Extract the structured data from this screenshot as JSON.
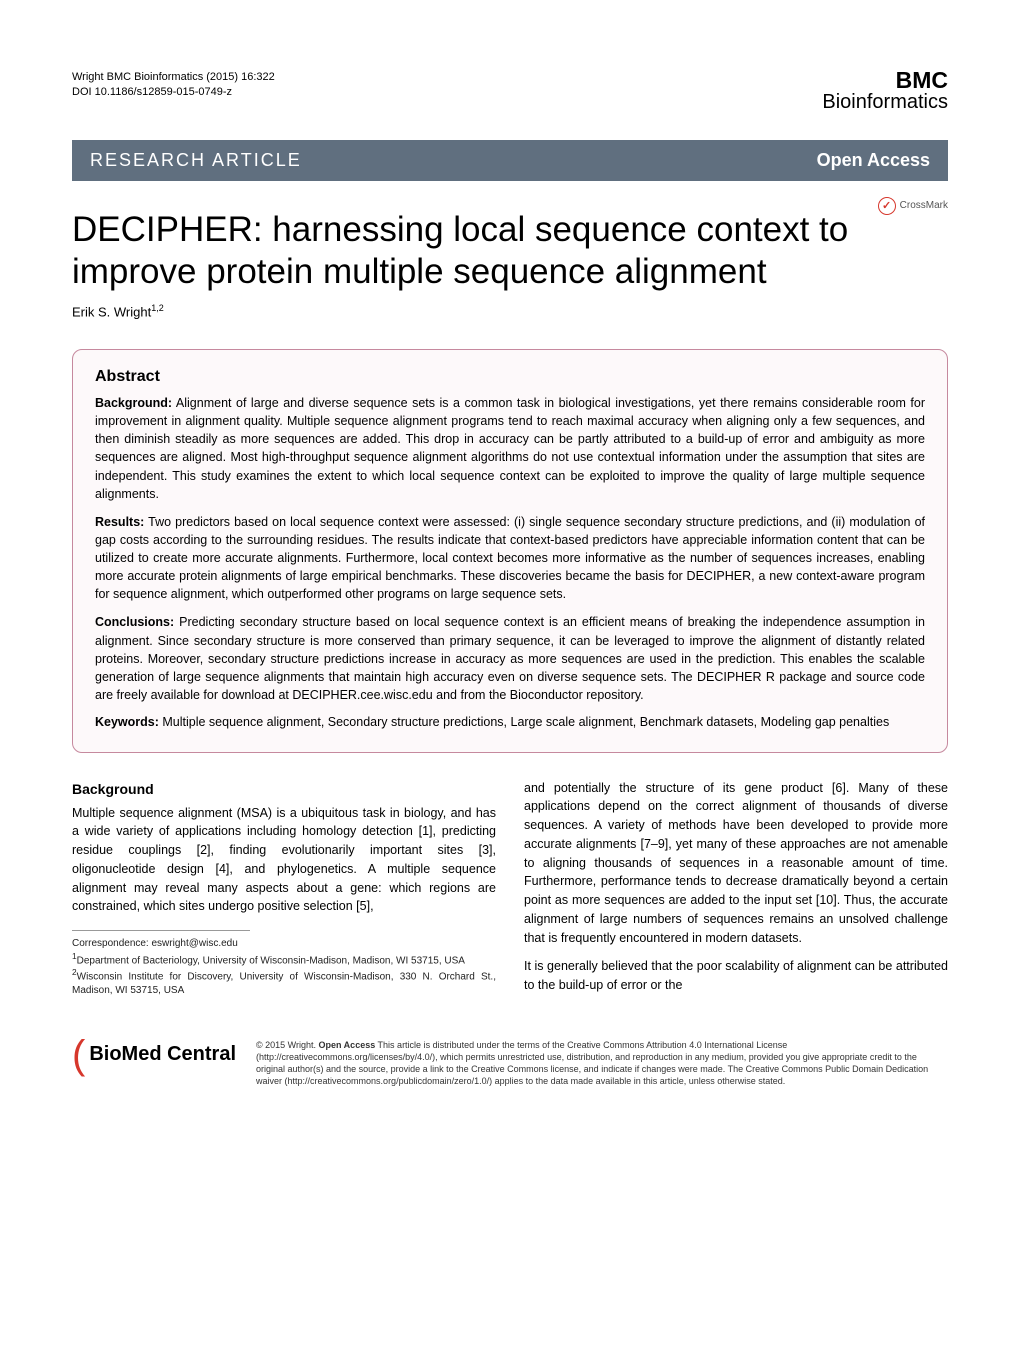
{
  "meta": {
    "citation_line1": "Wright BMC Bioinformatics  (2015) 16:322",
    "citation_line2": "DOI 10.1186/s12859-015-0749-z",
    "journal_logo_top": "BMC",
    "journal_logo_bottom": "Bioinformatics"
  },
  "banner": {
    "left": "RESEARCH ARTICLE",
    "right": "Open Access",
    "bg_color": "#606f7f",
    "text_color": "#ffffff"
  },
  "crossmark": {
    "label": "CrossMark",
    "icon_color": "#d6372c"
  },
  "title": "DECIPHER: harnessing local sequence context to improve protein multiple sequence alignment",
  "author": {
    "name": "Erik S. Wright",
    "affil": "1,2"
  },
  "abstract": {
    "heading": "Abstract",
    "background_label": "Background:",
    "background_text": "Alignment of large and diverse sequence sets is a common task in biological investigations, yet there remains considerable room for improvement in alignment quality. Multiple sequence alignment programs tend to reach maximal accuracy when aligning only a few sequences, and then diminish steadily as more sequences are added. This drop in accuracy can be partly attributed to a build-up of error and ambiguity as more sequences are aligned. Most high-throughput sequence alignment algorithms do not use contextual information under the assumption that sites are independent. This study examines the extent to which local sequence context can be exploited to improve the quality of large multiple sequence alignments.",
    "results_label": "Results:",
    "results_text": "Two predictors based on local sequence context were assessed: (i) single sequence secondary structure predictions, and (ii) modulation of gap costs according to the surrounding residues. The results indicate that context-based predictors have appreciable information content that can be utilized to create more accurate alignments. Furthermore, local context becomes more informative as the number of sequences increases, enabling more accurate protein alignments of large empirical benchmarks. These discoveries became the basis for DECIPHER, a new context-aware program for sequence alignment, which outperformed other programs on large sequence sets.",
    "conclusions_label": "Conclusions:",
    "conclusions_text": "Predicting secondary structure based on local sequence context is an efficient means of breaking the independence assumption in alignment. Since secondary structure is more conserved than primary sequence, it can be leveraged to improve the alignment of distantly related proteins. Moreover, secondary structure predictions increase in accuracy as more sequences are used in the prediction. This enables the scalable generation of large sequence alignments that maintain high accuracy even on diverse sequence sets. The DECIPHER R package and source code are freely available for download at DECIPHER.cee.wisc.edu and from the Bioconductor repository.",
    "keywords_label": "Keywords:",
    "keywords_text": "Multiple sequence alignment, Secondary structure predictions, Large scale alignment, Benchmark datasets, Modeling gap penalties",
    "border_color": "#c6899e",
    "bg_color": "#fdf9fa"
  },
  "body": {
    "heading": "Background",
    "col1": "Multiple sequence alignment (MSA) is a ubiquitous task in biology, and has a wide variety of applications including homology detection [1], predicting residue couplings [2], finding evolutionarily important sites [3], oligonucleotide design [4], and phylogenetics. A multiple sequence alignment may reveal many aspects about a gene: which regions are constrained, which sites undergo positive selection [5],",
    "col2_p1": "and potentially the structure of its gene product [6]. Many of these applications depend on the correct alignment of thousands of diverse sequences. A variety of methods have been developed to provide more accurate alignments [7–9], yet many of these approaches are not amenable to aligning thousands of sequences in a reasonable amount of time. Furthermore, performance tends to decrease dramatically beyond a certain point as more sequences are added to the input set [10]. Thus, the accurate alignment of large numbers of sequences remains an unsolved challenge that is frequently encountered in modern datasets.",
    "col2_p2": "It is generally believed that the poor scalability of alignment can be attributed to the build-up of error or the"
  },
  "correspondence": {
    "email_label": "Correspondence: ",
    "email": "eswright@wisc.edu",
    "affil1": "Department of Bacteriology, University of Wisconsin-Madison, Madison, WI 53715, USA",
    "affil2": "Wisconsin Institute for Discovery, University of Wisconsin-Madison, 330 N. Orchard St., Madison, WI 53715, USA"
  },
  "biomed": {
    "name": "BioMed Central",
    "bracket_color": "#d6372c"
  },
  "license": {
    "prefix": "© 2015 Wright. ",
    "bold": "Open Access",
    "text": " This article is distributed under the terms of the Creative Commons Attribution 4.0 International License (http://creativecommons.org/licenses/by/4.0/), which permits unrestricted use, distribution, and reproduction in any medium, provided you give appropriate credit to the original author(s) and the source, provide a link to the Creative Commons license, and indicate if changes were made. The Creative Commons Public Domain Dedication waiver (http://creativecommons.org/publicdomain/zero/1.0/) applies to the data made available in this article, unless otherwise stated."
  }
}
